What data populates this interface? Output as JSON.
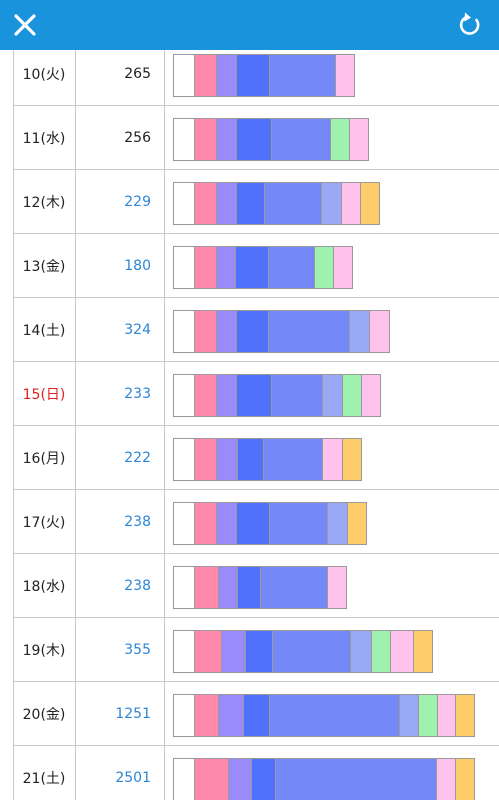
{
  "colors": {
    "topbar": "#1a93dd",
    "white": "#ffffff",
    "pink": "#ff88ad",
    "lavender": "#9b8af9",
    "blue": "#5170fb",
    "periwinkle": "#7488f8",
    "lightblue": "#9aa9f6",
    "green": "#9ef2ae",
    "lightpink": "#ffc2ec",
    "orange": "#ffcc6b"
  },
  "header": {
    "close_icon": "close-icon",
    "reload_icon": "reload-icon"
  },
  "rows": [
    {
      "date": "10(火)",
      "count": "265",
      "count_link": false,
      "holiday": false,
      "segments": [
        {
          "color": "white",
          "w": 22
        },
        {
          "color": "pink",
          "w": 22
        },
        {
          "color": "lavender",
          "w": 20
        },
        {
          "color": "blue",
          "w": 33
        },
        {
          "color": "periwinkle",
          "w": 66
        },
        {
          "color": "lightpink",
          "w": 19
        }
      ]
    },
    {
      "date": "11(水)",
      "count": "256",
      "count_link": false,
      "holiday": false,
      "segments": [
        {
          "color": "white",
          "w": 22
        },
        {
          "color": "pink",
          "w": 22
        },
        {
          "color": "lavender",
          "w": 20
        },
        {
          "color": "blue",
          "w": 35
        },
        {
          "color": "periwinkle",
          "w": 59
        },
        {
          "color": "green",
          "w": 19
        },
        {
          "color": "lightpink",
          "w": 19
        }
      ]
    },
    {
      "date": "12(木)",
      "count": "229",
      "count_link": true,
      "holiday": false,
      "segments": [
        {
          "color": "white",
          "w": 22
        },
        {
          "color": "pink",
          "w": 22
        },
        {
          "color": "lavender",
          "w": 20
        },
        {
          "color": "blue",
          "w": 28
        },
        {
          "color": "periwinkle",
          "w": 57
        },
        {
          "color": "lightblue",
          "w": 20
        },
        {
          "color": "lightpink",
          "w": 19
        },
        {
          "color": "orange",
          "w": 19
        }
      ]
    },
    {
      "date": "13(金)",
      "count": "180",
      "count_link": true,
      "holiday": false,
      "segments": [
        {
          "color": "white",
          "w": 22
        },
        {
          "color": "pink",
          "w": 22
        },
        {
          "color": "lavender",
          "w": 19
        },
        {
          "color": "blue",
          "w": 33
        },
        {
          "color": "periwinkle",
          "w": 46
        },
        {
          "color": "green",
          "w": 19
        },
        {
          "color": "lightpink",
          "w": 19
        }
      ]
    },
    {
      "date": "14(土)",
      "count": "324",
      "count_link": true,
      "holiday": false,
      "segments": [
        {
          "color": "white",
          "w": 22
        },
        {
          "color": "pink",
          "w": 22
        },
        {
          "color": "lavender",
          "w": 20
        },
        {
          "color": "blue",
          "w": 32
        },
        {
          "color": "periwinkle",
          "w": 81
        },
        {
          "color": "lightblue",
          "w": 20
        },
        {
          "color": "lightpink",
          "w": 20
        }
      ]
    },
    {
      "date": "15(日)",
      "count": "233",
      "count_link": true,
      "holiday": true,
      "segments": [
        {
          "color": "white",
          "w": 22
        },
        {
          "color": "pink",
          "w": 22
        },
        {
          "color": "lavender",
          "w": 20
        },
        {
          "color": "blue",
          "w": 35
        },
        {
          "color": "periwinkle",
          "w": 51
        },
        {
          "color": "lightblue",
          "w": 20
        },
        {
          "color": "green",
          "w": 19
        },
        {
          "color": "lightpink",
          "w": 19
        }
      ]
    },
    {
      "date": "16(月)",
      "count": "222",
      "count_link": true,
      "holiday": false,
      "segments": [
        {
          "color": "white",
          "w": 22
        },
        {
          "color": "pink",
          "w": 22
        },
        {
          "color": "lavender",
          "w": 21
        },
        {
          "color": "blue",
          "w": 26
        },
        {
          "color": "periwinkle",
          "w": 59
        },
        {
          "color": "lightpink",
          "w": 20
        },
        {
          "color": "orange",
          "w": 19
        }
      ]
    },
    {
      "date": "17(火)",
      "count": "238",
      "count_link": true,
      "holiday": false,
      "segments": [
        {
          "color": "white",
          "w": 22
        },
        {
          "color": "pink",
          "w": 22
        },
        {
          "color": "lavender",
          "w": 20
        },
        {
          "color": "blue",
          "w": 33
        },
        {
          "color": "periwinkle",
          "w": 58
        },
        {
          "color": "lightblue",
          "w": 20
        },
        {
          "color": "orange",
          "w": 19
        }
      ]
    },
    {
      "date": "18(水)",
      "count": "238",
      "count_link": true,
      "holiday": false,
      "segments": [
        {
          "color": "white",
          "w": 22
        },
        {
          "color": "pink",
          "w": 24
        },
        {
          "color": "lavender",
          "w": 19
        },
        {
          "color": "blue",
          "w": 23
        },
        {
          "color": "periwinkle",
          "w": 67
        },
        {
          "color": "lightpink",
          "w": 19
        }
      ]
    },
    {
      "date": "19(木)",
      "count": "355",
      "count_link": true,
      "holiday": false,
      "segments": [
        {
          "color": "white",
          "w": 22
        },
        {
          "color": "pink",
          "w": 27
        },
        {
          "color": "lavender",
          "w": 24
        },
        {
          "color": "blue",
          "w": 27
        },
        {
          "color": "periwinkle",
          "w": 78
        },
        {
          "color": "lightblue",
          "w": 21
        },
        {
          "color": "green",
          "w": 19
        },
        {
          "color": "lightpink",
          "w": 23
        },
        {
          "color": "orange",
          "w": 19
        }
      ]
    },
    {
      "date": "20(金)",
      "count": "1251",
      "count_link": true,
      "holiday": false,
      "segments": [
        {
          "color": "white",
          "w": 22
        },
        {
          "color": "pink",
          "w": 24
        },
        {
          "color": "lavender",
          "w": 25
        },
        {
          "color": "blue",
          "w": 26
        },
        {
          "color": "periwinkle",
          "w": 130
        },
        {
          "color": "lightblue",
          "w": 19
        },
        {
          "color": "green",
          "w": 19
        },
        {
          "color": "lightpink",
          "w": 18
        },
        {
          "color": "orange",
          "w": 19
        }
      ]
    },
    {
      "date": "21(土)",
      "count": "2501",
      "count_link": true,
      "holiday": false,
      "segments": [
        {
          "color": "white",
          "w": 22
        },
        {
          "color": "pink",
          "w": 34
        },
        {
          "color": "lavender",
          "w": 23
        },
        {
          "color": "blue",
          "w": 24
        },
        {
          "color": "periwinkle",
          "w": 161
        },
        {
          "color": "lightpink",
          "w": 19
        },
        {
          "color": "orange",
          "w": 19
        }
      ]
    }
  ]
}
